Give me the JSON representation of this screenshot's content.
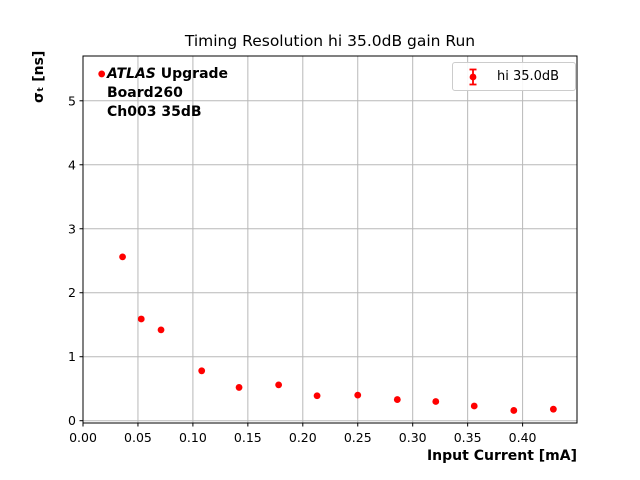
{
  "figure": {
    "title": "Timing Resolution hi 35.0dB gain Run",
    "xlabel": "Input Current [mA]",
    "ylabel": "σₜ [ns]",
    "background": "#ffffff"
  },
  "annotation": {
    "line1_italic": "ATLAS",
    "line1_rest": " Upgrade",
    "line2": "Board260",
    "line3": "Ch003 35dB"
  },
  "legend": {
    "label": "hi 35.0dB",
    "marker_icon": "errorbar-point-icon",
    "marker_color": "#ff0000",
    "border_color": "#cccccc",
    "position": "upper right"
  },
  "chart_data": {
    "type": "scatter",
    "title": "Timing Resolution hi 35.0dB gain Run",
    "xlabel": "Input Current [mA]",
    "ylabel": "sigma_t [ns]",
    "series": [
      {
        "name": "hi 35.0dB",
        "color": "#ff0000",
        "marker": "circle",
        "marker_radius_px": 3.4,
        "points": [
          [
            0.017,
            5.42
          ],
          [
            0.036,
            2.56
          ],
          [
            0.053,
            1.59
          ],
          [
            0.071,
            1.42
          ],
          [
            0.108,
            0.78
          ],
          [
            0.142,
            0.52
          ],
          [
            0.178,
            0.56
          ],
          [
            0.213,
            0.39
          ],
          [
            0.25,
            0.4
          ],
          [
            0.286,
            0.33
          ],
          [
            0.321,
            0.3
          ],
          [
            0.356,
            0.23
          ],
          [
            0.392,
            0.16
          ],
          [
            0.428,
            0.18
          ]
        ]
      }
    ],
    "xlim": [
      0,
      0.4495
    ],
    "ylim": [
      -0.036,
      5.7
    ],
    "xticks": {
      "values": [
        0,
        0.05,
        0.1,
        0.15,
        0.2,
        0.25,
        0.3,
        0.35,
        0.4
      ],
      "labels": [
        "0.00",
        "0.05",
        "0.10",
        "0.15",
        "0.20",
        "0.25",
        "0.30",
        "0.35",
        "0.40"
      ]
    },
    "yticks": {
      "values": [
        0,
        1,
        2,
        3,
        4,
        5
      ],
      "labels": [
        "0",
        "1",
        "2",
        "3",
        "4",
        "5"
      ]
    },
    "grid": true,
    "grid_color": "#b8b8b8",
    "spine_color": "#000000",
    "legend_position": "upper right"
  }
}
